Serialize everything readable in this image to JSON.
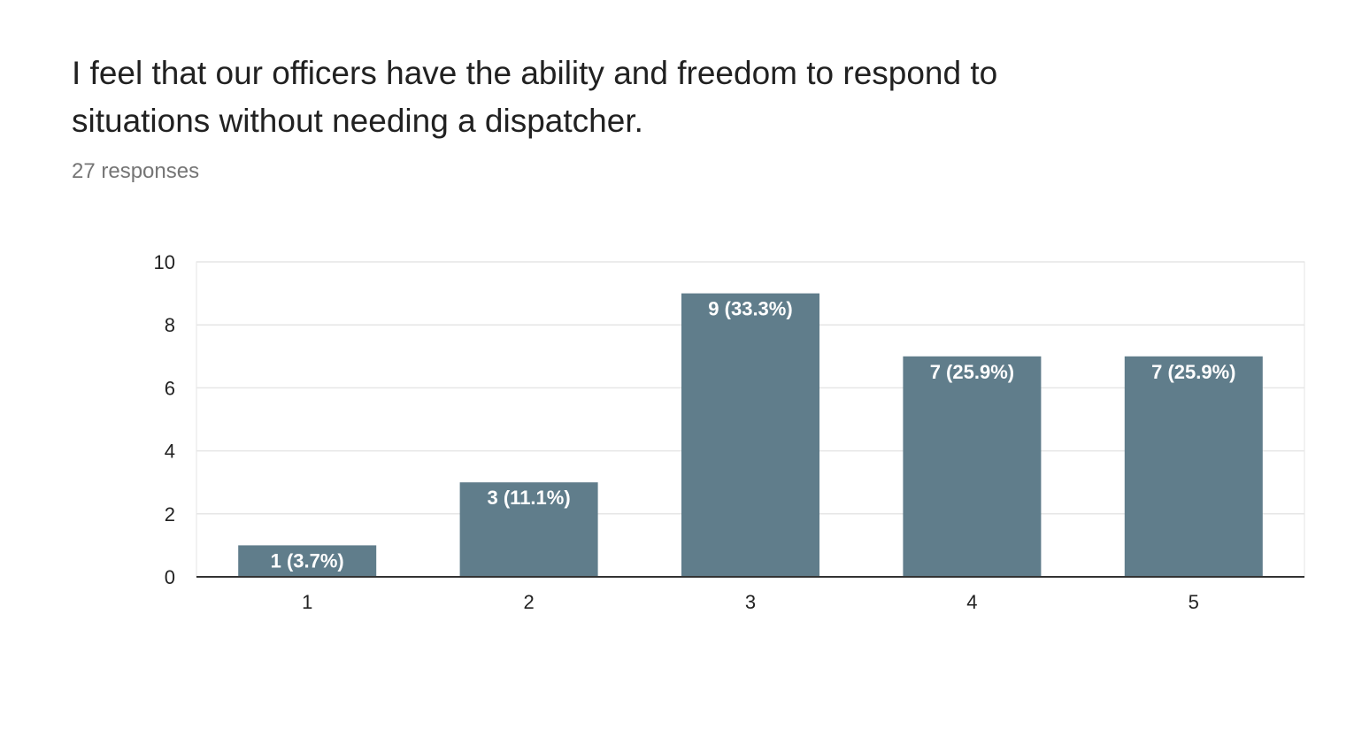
{
  "question": {
    "title": "I feel that our officers have the ability and freedom to respond to situations without needing a dispatcher.",
    "responses": "27 responses"
  },
  "colors": {
    "bar": "#607d8b",
    "grid": "#e6e6e6",
    "axis": "#333333"
  },
  "chart_data": {
    "type": "bar",
    "categories": [
      "1",
      "2",
      "3",
      "4",
      "5"
    ],
    "values": [
      1,
      3,
      9,
      7,
      7
    ],
    "data_labels": [
      "1 (3.7%)",
      "3 (11.1%)",
      "9 (33.3%)",
      "7 (25.9%)",
      "7 (25.9%)"
    ],
    "ylim": [
      0,
      10
    ],
    "yticks": [
      0,
      2,
      4,
      6,
      8,
      10
    ],
    "grid": true,
    "legend": "none"
  }
}
